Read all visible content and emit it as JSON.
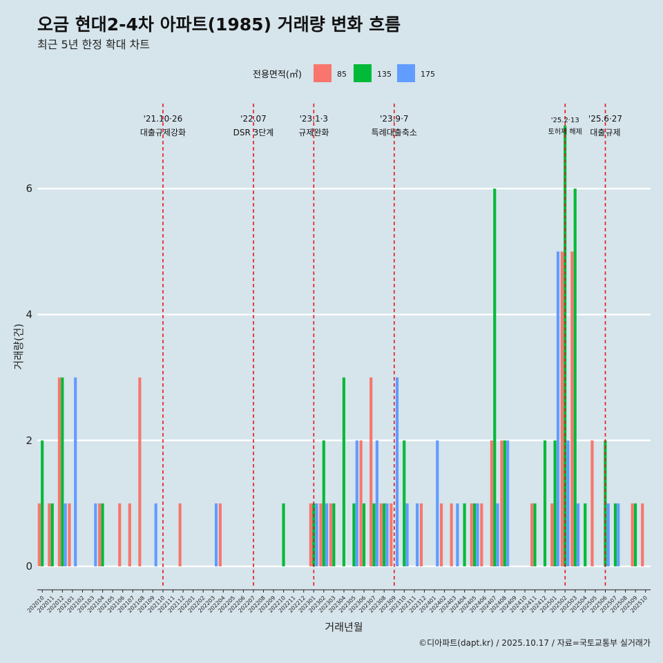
{
  "chart_data": {
    "type": "bar",
    "title": "오금 현대2-4차 아파트(1985) 거래량 변화 흐름",
    "subtitle": "최근 5년 한정 확대 차트",
    "xlabel": "거래년월",
    "ylabel": "거래량(건)",
    "caption": "©디아파트(dapt.kr) / 2025.10.17 / 자료=국토교통부 실거래가",
    "legend": {
      "title": "전용면적(㎡)",
      "position": "top",
      "entries": [
        {
          "name": "85",
          "color": "#f8766d"
        },
        {
          "name": "135",
          "color": "#00ba38"
        },
        {
          "name": "175",
          "color": "#619cff"
        }
      ]
    },
    "ylim": [
      -0.35,
      7.35
    ],
    "yticks": [
      0,
      2,
      4,
      6
    ],
    "categories": [
      "202010",
      "202011",
      "202012",
      "202101",
      "202102",
      "202103",
      "202104",
      "202105",
      "202106",
      "202107",
      "202108",
      "202109",
      "202110",
      "202111",
      "202112",
      "202201",
      "202202",
      "202203",
      "202204",
      "202205",
      "202206",
      "202207",
      "202208",
      "202209",
      "202210",
      "202211",
      "202212",
      "202301",
      "202302",
      "202303",
      "202304",
      "202305",
      "202306",
      "202307",
      "202308",
      "202309",
      "202310",
      "202311",
      "202312",
      "202401",
      "202402",
      "202403",
      "202404",
      "202405",
      "202406",
      "202407",
      "202408",
      "202409",
      "202410",
      "202411",
      "202412",
      "202501",
      "202502",
      "202503",
      "202504",
      "202505",
      "202506",
      "202507",
      "202508",
      "202509",
      "202510"
    ],
    "series": [
      {
        "name": "85",
        "color": "#f8766d",
        "values": [
          1,
          1,
          3,
          1,
          0,
          0,
          1,
          0,
          1,
          1,
          3,
          0,
          0,
          0,
          1,
          0,
          0,
          0,
          1,
          0,
          0,
          0,
          0,
          0,
          0,
          0,
          0,
          1,
          1,
          1,
          0,
          0,
          2,
          3,
          1,
          1,
          0,
          0,
          1,
          0,
          1,
          1,
          0,
          1,
          1,
          2,
          2,
          0,
          0,
          1,
          0,
          1,
          5,
          5,
          0,
          2,
          0,
          0,
          0,
          1,
          1
        ]
      },
      {
        "name": "135",
        "color": "#00ba38",
        "values": [
          2,
          1,
          3,
          0,
          0,
          0,
          1,
          0,
          0,
          0,
          0,
          0,
          0,
          0,
          0,
          0,
          0,
          0,
          0,
          0,
          0,
          0,
          0,
          0,
          1,
          0,
          0,
          1,
          2,
          1,
          3,
          1,
          1,
          1,
          1,
          0,
          2,
          0,
          0,
          0,
          0,
          0,
          1,
          1,
          0,
          6,
          2,
          0,
          0,
          1,
          2,
          2,
          7,
          6,
          1,
          0,
          2,
          1,
          0,
          1,
          0
        ]
      },
      {
        "name": "175",
        "color": "#619cff",
        "values": [
          0,
          0,
          1,
          3,
          0,
          1,
          0,
          0,
          0,
          0,
          0,
          1,
          0,
          0,
          0,
          0,
          0,
          1,
          0,
          0,
          0,
          0,
          0,
          0,
          0,
          0,
          0,
          1,
          1,
          0,
          0,
          2,
          0,
          2,
          1,
          3,
          1,
          1,
          0,
          2,
          0,
          1,
          0,
          1,
          0,
          1,
          2,
          0,
          0,
          0,
          0,
          5,
          2,
          1,
          0,
          0,
          1,
          1,
          0,
          0,
          0
        ]
      }
    ],
    "events": [
      {
        "date": "202110",
        "label1": "'21.10·26",
        "label2": "대출규제강화"
      },
      {
        "date": "202207",
        "label1": "'22.07",
        "label2": "DSR 3단계"
      },
      {
        "date": "202301",
        "label1": "'23.1·3",
        "label2": "규제완화"
      },
      {
        "date": "202309",
        "label1": "'23.9·7",
        "label2": "특례대출축소"
      },
      {
        "date": "202502",
        "label1": "'25.2·13",
        "label2": "토허제 해제"
      },
      {
        "date": "202506",
        "label1": "'25.6·27",
        "label2": "대출규제"
      }
    ],
    "grid": true
  }
}
